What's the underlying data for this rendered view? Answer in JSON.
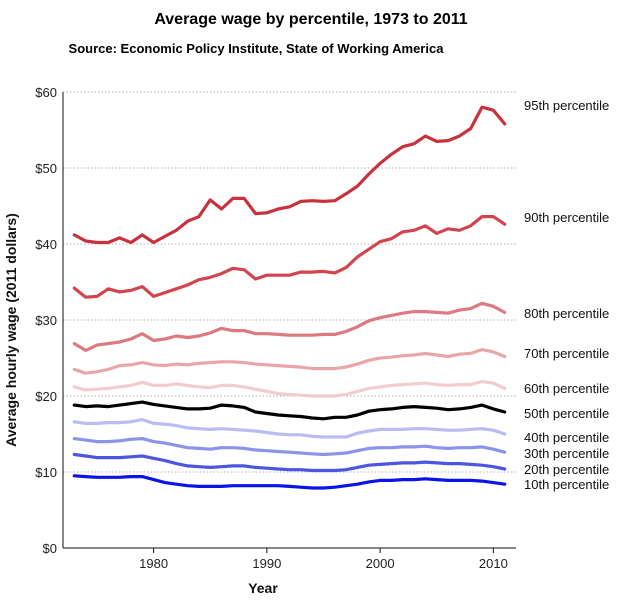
{
  "chart_data": {
    "type": "line",
    "title": "Average wage by percentile, 1973 to 2011",
    "subtitle": "Source: Economic Policy Institute, State of Working America",
    "xlabel": "Year",
    "ylabel": "Average hourly wage (2011 dollars)",
    "xlim": [
      1972,
      2012
    ],
    "ylim": [
      0,
      60
    ],
    "x_ticks": [
      1980,
      1990,
      2000,
      2010
    ],
    "y_ticks": [
      0,
      10,
      20,
      30,
      40,
      50,
      60
    ],
    "y_tick_labels": [
      "$0",
      "$10",
      "$20",
      "$30",
      "$40",
      "$50",
      "$60"
    ],
    "grid": "horizontal dotted",
    "legend": "labels at right end of each line",
    "x": [
      1973,
      1974,
      1975,
      1976,
      1977,
      1978,
      1979,
      1980,
      1981,
      1982,
      1983,
      1984,
      1985,
      1986,
      1987,
      1988,
      1989,
      1990,
      1991,
      1992,
      1993,
      1994,
      1995,
      1996,
      1997,
      1998,
      1999,
      2000,
      2001,
      2002,
      2003,
      2004,
      2005,
      2006,
      2007,
      2008,
      2009,
      2010,
      2011
    ],
    "series": [
      {
        "name": "95th percentile",
        "color": "#c8323c",
        "values": [
          41.2,
          40.4,
          40.2,
          40.2,
          40.8,
          40.2,
          41.2,
          40.2,
          41.0,
          41.8,
          43.0,
          43.6,
          45.8,
          44.6,
          46.0,
          46.0,
          44.0,
          44.1,
          44.6,
          44.9,
          45.6,
          45.7,
          45.6,
          45.7,
          46.6,
          47.6,
          49.2,
          50.6,
          51.8,
          52.8,
          53.2,
          54.2,
          53.5,
          53.6,
          54.2,
          55.2,
          58.0,
          57.6,
          55.8
        ]
      },
      {
        "name": "90th percentile",
        "color": "#d2454f",
        "values": [
          34.2,
          33.0,
          33.1,
          34.1,
          33.7,
          33.9,
          34.4,
          33.1,
          33.6,
          34.1,
          34.6,
          35.3,
          35.6,
          36.1,
          36.8,
          36.6,
          35.4,
          35.9,
          35.9,
          35.9,
          36.3,
          36.3,
          36.4,
          36.2,
          36.9,
          38.3,
          39.3,
          40.3,
          40.7,
          41.6,
          41.8,
          42.4,
          41.4,
          42.0,
          41.8,
          42.4,
          43.6,
          43.6,
          42.6
        ]
      },
      {
        "name": "80th percentile",
        "color": "#dc7a80",
        "values": [
          26.9,
          26.0,
          26.7,
          26.9,
          27.1,
          27.5,
          28.2,
          27.3,
          27.5,
          27.9,
          27.7,
          27.9,
          28.3,
          28.9,
          28.6,
          28.6,
          28.2,
          28.2,
          28.1,
          28.0,
          28.0,
          28.0,
          28.1,
          28.1,
          28.5,
          29.1,
          29.9,
          30.3,
          30.6,
          30.9,
          31.1,
          31.1,
          31.0,
          30.9,
          31.3,
          31.5,
          32.2,
          31.8,
          31.0
        ]
      },
      {
        "name": "70th percentile",
        "color": "#e9a6a9",
        "values": [
          23.5,
          23.0,
          23.2,
          23.5,
          24.0,
          24.1,
          24.4,
          24.1,
          24.0,
          24.2,
          24.1,
          24.3,
          24.4,
          24.5,
          24.5,
          24.4,
          24.2,
          24.1,
          24.0,
          23.9,
          23.8,
          23.6,
          23.6,
          23.6,
          23.8,
          24.2,
          24.7,
          25.0,
          25.1,
          25.3,
          25.4,
          25.6,
          25.4,
          25.2,
          25.5,
          25.6,
          26.1,
          25.8,
          25.2
        ]
      },
      {
        "name": "60th percentile",
        "color": "#f2ccce",
        "values": [
          21.2,
          20.8,
          20.9,
          21.0,
          21.2,
          21.4,
          21.8,
          21.4,
          21.4,
          21.6,
          21.4,
          21.2,
          21.1,
          21.4,
          21.4,
          21.2,
          20.9,
          20.6,
          20.3,
          20.2,
          20.1,
          20.0,
          20.0,
          20.0,
          20.2,
          20.6,
          21.0,
          21.2,
          21.4,
          21.5,
          21.6,
          21.7,
          21.5,
          21.4,
          21.5,
          21.5,
          21.9,
          21.7,
          21.0
        ]
      },
      {
        "name": "50th percentile",
        "color": "#000000",
        "values": [
          18.8,
          18.6,
          18.7,
          18.6,
          18.8,
          19.0,
          19.2,
          18.9,
          18.7,
          18.5,
          18.3,
          18.3,
          18.4,
          18.8,
          18.7,
          18.5,
          17.9,
          17.7,
          17.5,
          17.4,
          17.3,
          17.1,
          17.0,
          17.2,
          17.2,
          17.5,
          18.0,
          18.2,
          18.3,
          18.5,
          18.6,
          18.5,
          18.4,
          18.2,
          18.3,
          18.5,
          18.8,
          18.3,
          17.9
        ]
      },
      {
        "name": "40th percentile",
        "color": "#b9bdf3",
        "values": [
          16.6,
          16.4,
          16.4,
          16.5,
          16.5,
          16.6,
          16.9,
          16.4,
          16.3,
          16.1,
          15.8,
          15.7,
          15.6,
          15.7,
          15.6,
          15.5,
          15.4,
          15.2,
          15.0,
          14.9,
          14.9,
          14.7,
          14.6,
          14.6,
          14.6,
          15.1,
          15.4,
          15.6,
          15.6,
          15.6,
          15.7,
          15.7,
          15.6,
          15.5,
          15.5,
          15.6,
          15.7,
          15.5,
          15.0
        ]
      },
      {
        "name": "30th percentile",
        "color": "#8c93eb",
        "values": [
          14.4,
          14.2,
          14.0,
          14.0,
          14.1,
          14.3,
          14.4,
          14.0,
          13.8,
          13.5,
          13.2,
          13.1,
          13.0,
          13.2,
          13.2,
          13.1,
          12.9,
          12.8,
          12.7,
          12.6,
          12.5,
          12.4,
          12.3,
          12.4,
          12.5,
          12.8,
          13.1,
          13.2,
          13.2,
          13.3,
          13.3,
          13.4,
          13.2,
          13.1,
          13.2,
          13.2,
          13.3,
          13.0,
          12.6
        ]
      },
      {
        "name": "20th percentile",
        "color": "#4d56e0",
        "values": [
          12.3,
          12.1,
          11.9,
          11.9,
          11.9,
          12.0,
          12.1,
          11.8,
          11.5,
          11.1,
          10.8,
          10.7,
          10.6,
          10.7,
          10.8,
          10.8,
          10.6,
          10.5,
          10.4,
          10.3,
          10.3,
          10.2,
          10.2,
          10.2,
          10.3,
          10.6,
          10.9,
          11.0,
          11.1,
          11.2,
          11.2,
          11.3,
          11.2,
          11.1,
          11.1,
          11.0,
          10.9,
          10.7,
          10.4
        ]
      },
      {
        "name": "10th percentile",
        "color": "#0a14e6",
        "values": [
          9.5,
          9.4,
          9.3,
          9.3,
          9.3,
          9.4,
          9.4,
          9.0,
          8.6,
          8.4,
          8.2,
          8.1,
          8.1,
          8.1,
          8.2,
          8.2,
          8.2,
          8.2,
          8.2,
          8.1,
          8.0,
          7.9,
          7.9,
          8.0,
          8.2,
          8.4,
          8.7,
          8.9,
          8.9,
          9.0,
          9.0,
          9.1,
          9.0,
          8.9,
          8.9,
          8.9,
          8.8,
          8.6,
          8.4
        ]
      }
    ]
  }
}
